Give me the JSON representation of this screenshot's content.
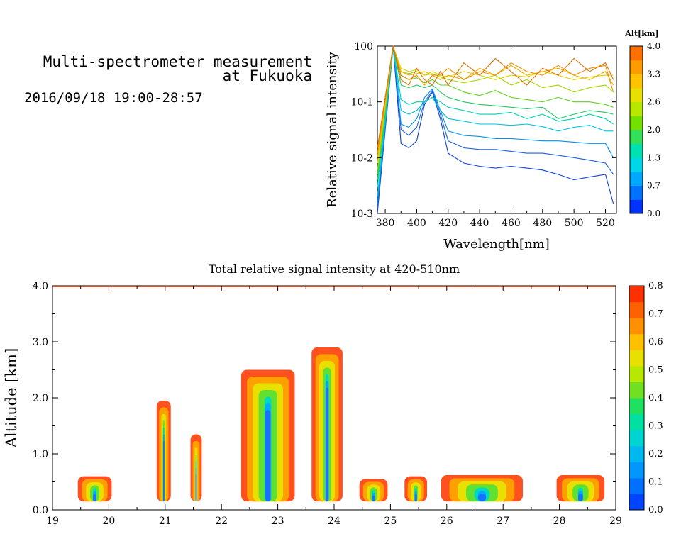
{
  "header": {
    "title_line1": "Multi-spectrometer measurement",
    "title_line2": "at Fukuoka",
    "date_range": "2016/09/18 19:00-28:57"
  },
  "chart_data": [
    {
      "type": "line",
      "xlabel": "Wavelength[nm]",
      "ylabel": "Relative signal intensity",
      "xlim": [
        375,
        527
      ],
      "ylim": [
        0.001,
        1
      ],
      "yscale": "log",
      "x_ticks": [
        380,
        400,
        420,
        440,
        460,
        480,
        500,
        520
      ],
      "y_tick_labels": [
        "10-3",
        "10-2",
        "10-1",
        "100"
      ],
      "colorbar": {
        "label": "Alt[km]",
        "ticks": [
          "0.0",
          "0.7",
          "1.3",
          "2.0",
          "2.6",
          "3.3",
          "4.0"
        ],
        "colors": [
          "#0033ff",
          "#0072ff",
          "#00a8ff",
          "#00d6e8",
          "#00e0b0",
          "#33e05a",
          "#73e000",
          "#b8e800",
          "#e8e000",
          "#ffc400",
          "#ff9a00",
          "#ff7000"
        ]
      },
      "x": [
        375,
        385,
        390,
        395,
        400,
        405,
        410,
        415,
        420,
        430,
        440,
        450,
        460,
        470,
        480,
        490,
        500,
        510,
        520,
        525
      ],
      "series": [
        {
          "color": "#1040d8",
          "values": [
            0.001,
            1.0,
            0.018,
            0.015,
            0.02,
            0.09,
            0.15,
            0.05,
            0.012,
            0.008,
            0.007,
            0.0065,
            0.007,
            0.0065,
            0.006,
            0.005,
            0.004,
            0.0045,
            0.005,
            0.0015
          ]
        },
        {
          "color": "#1a60e0",
          "values": [
            0.0012,
            1.0,
            0.032,
            0.025,
            0.035,
            0.1,
            0.16,
            0.06,
            0.02,
            0.015,
            0.014,
            0.014,
            0.013,
            0.012,
            0.012,
            0.011,
            0.01,
            0.009,
            0.008,
            0.005
          ]
        },
        {
          "color": "#0090f0",
          "values": [
            0.0015,
            1.0,
            0.04,
            0.035,
            0.05,
            0.12,
            0.17,
            0.07,
            0.03,
            0.025,
            0.024,
            0.022,
            0.022,
            0.021,
            0.02,
            0.02,
            0.019,
            0.018,
            0.018,
            0.01
          ]
        },
        {
          "color": "#00c0e0",
          "values": [
            0.002,
            1.0,
            0.07,
            0.06,
            0.07,
            0.1,
            0.12,
            0.07,
            0.05,
            0.045,
            0.04,
            0.04,
            0.038,
            0.04,
            0.036,
            0.03,
            0.035,
            0.038,
            0.03,
            0.03
          ]
        },
        {
          "color": "#00d0b0",
          "values": [
            0.003,
            1.0,
            0.11,
            0.09,
            0.1,
            0.1,
            0.12,
            0.1,
            0.08,
            0.07,
            0.06,
            0.06,
            0.065,
            0.05,
            0.06,
            0.045,
            0.05,
            0.06,
            0.05,
            0.04
          ]
        },
        {
          "color": "#20c860",
          "values": [
            0.004,
            1.0,
            0.2,
            0.18,
            0.2,
            0.18,
            0.2,
            0.15,
            0.12,
            0.1,
            0.09,
            0.085,
            0.08,
            0.075,
            0.08,
            0.05,
            0.06,
            0.07,
            0.065,
            0.06
          ]
        },
        {
          "color": "#60d020",
          "values": [
            0.005,
            1.0,
            0.3,
            0.25,
            0.27,
            0.22,
            0.25,
            0.2,
            0.2,
            0.15,
            0.13,
            0.16,
            0.12,
            0.11,
            0.1,
            0.12,
            0.1,
            0.1,
            0.09,
            0.08
          ]
        },
        {
          "color": "#a0d800",
          "values": [
            0.006,
            1.0,
            0.35,
            0.32,
            0.35,
            0.3,
            0.32,
            0.28,
            0.25,
            0.22,
            0.25,
            0.3,
            0.2,
            0.25,
            0.18,
            0.2,
            0.15,
            0.18,
            0.2,
            0.15
          ]
        },
        {
          "color": "#e0d000",
          "values": [
            0.008,
            1.0,
            0.4,
            0.35,
            0.38,
            0.3,
            0.35,
            0.3,
            0.28,
            0.35,
            0.3,
            0.25,
            0.3,
            0.28,
            0.35,
            0.3,
            0.25,
            0.28,
            0.3,
            0.3
          ]
        },
        {
          "color": "#f0b000",
          "values": [
            0.01,
            1.0,
            0.35,
            0.3,
            0.32,
            0.35,
            0.3,
            0.25,
            0.3,
            0.25,
            0.4,
            0.3,
            0.45,
            0.3,
            0.35,
            0.4,
            0.3,
            0.25,
            0.35,
            0.2
          ]
        },
        {
          "color": "#f09000",
          "values": [
            0.012,
            1.0,
            0.3,
            0.25,
            0.3,
            0.2,
            0.3,
            0.3,
            0.4,
            0.25,
            0.35,
            0.3,
            0.5,
            0.35,
            0.3,
            0.45,
            0.3,
            0.4,
            0.45,
            0.15
          ]
        },
        {
          "color": "#e07000",
          "values": [
            0.015,
            1.0,
            0.25,
            0.2,
            0.4,
            0.25,
            0.2,
            0.35,
            0.2,
            0.5,
            0.3,
            0.6,
            0.35,
            0.2,
            0.4,
            0.3,
            0.6,
            0.35,
            0.5,
            0.25
          ]
        }
      ]
    },
    {
      "type": "heatmap",
      "title": "Total relative signal intensity at 420-510nm",
      "ylabel": "Altitude [km]",
      "xlim": [
        19,
        29
      ],
      "ylim": [
        0,
        4
      ],
      "x_ticks": [
        19,
        20,
        21,
        22,
        23,
        24,
        25,
        26,
        27,
        28,
        29
      ],
      "y_ticks": [
        "0.0",
        "1.0",
        "2.0",
        "3.0",
        "4.0"
      ],
      "colorbar": {
        "ticks": [
          "0.0",
          "0.1",
          "0.2",
          "0.3",
          "0.4",
          "0.5",
          "0.6",
          "0.7",
          "0.8"
        ],
        "colors": [
          "#0044ff",
          "#0070ff",
          "#0098ff",
          "#00b8f0",
          "#00d4d0",
          "#00e0a0",
          "#20e060",
          "#70e020",
          "#b8e800",
          "#e8e000",
          "#ffc000",
          "#ff9000",
          "#ff6000",
          "#ff3000"
        ]
      },
      "regions": [
        {
          "t0": 19.45,
          "t1": 20.05,
          "top": 0.6
        },
        {
          "t0": 20.85,
          "t1": 21.1,
          "top": 1.95
        },
        {
          "t0": 21.45,
          "t1": 21.65,
          "top": 1.35
        },
        {
          "t0": 22.35,
          "t1": 23.3,
          "top": 2.5
        },
        {
          "t0": 23.6,
          "t1": 24.15,
          "top": 2.9
        },
        {
          "t0": 24.45,
          "t1": 24.95,
          "top": 0.55
        },
        {
          "t0": 25.25,
          "t1": 25.65,
          "top": 0.6
        },
        {
          "t0": 25.9,
          "t1": 27.35,
          "top": 0.62
        },
        {
          "t0": 27.95,
          "t1": 28.8,
          "top": 0.62
        }
      ]
    }
  ]
}
